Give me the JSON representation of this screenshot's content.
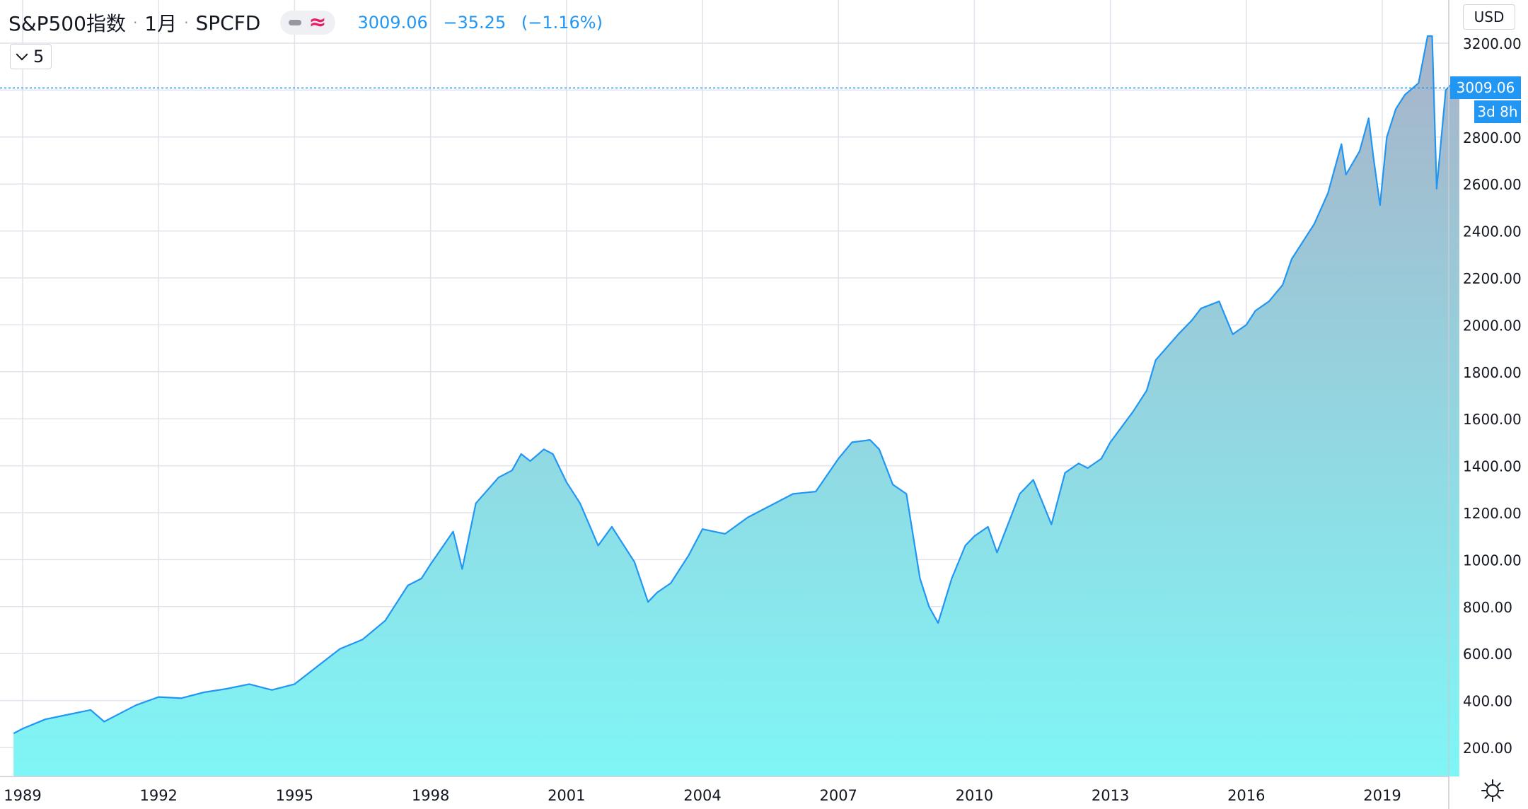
{
  "header": {
    "symbol": "S&P500指数",
    "interval": "1月",
    "source": "SPCFD",
    "last_price": "3009.06",
    "change": "−35.25",
    "change_pct": "(−1.16%)",
    "wave_icon": "≈"
  },
  "indicator_toggle": {
    "count": "5"
  },
  "currency_button": "USD",
  "last_price_tag": "3009.06",
  "countdown_tag": "3d 8h",
  "colors": {
    "line": "#2196f3",
    "fill_bottom": "#7ff6f6",
    "fill_top": "#a8b3c9",
    "grid": "#e0e3eb",
    "text": "#131722",
    "accent": "#2196f3"
  },
  "chart_data": {
    "type": "area",
    "title": "S&P500指数",
    "xlabel": "",
    "ylabel": "",
    "ylim": [
      120,
      3360
    ],
    "xlim": [
      1988.8,
      2021.2
    ],
    "grid": true,
    "x_ticks": [
      1989,
      1992,
      1995,
      1998,
      2001,
      2004,
      2007,
      2010,
      2013,
      2016,
      2019
    ],
    "x_tick_labels": [
      "1989",
      "1992",
      "1995",
      "1998",
      "2001",
      "2004",
      "2007",
      "2010",
      "2013",
      "2016",
      "2019"
    ],
    "y_ticks": [
      200,
      400,
      600,
      800,
      1000,
      1200,
      1400,
      1600,
      1800,
      2000,
      2200,
      2400,
      2600,
      2800,
      3000,
      3200
    ],
    "y_tick_labels": [
      "200.00",
      "400.00",
      "600.00",
      "800.00",
      "1000.00",
      "1200.00",
      "1400.00",
      "1600.00",
      "1800.00",
      "2000.00",
      "2200.00",
      "2400.00",
      "2600.00",
      "2800.00",
      "",
      "3200.00"
    ],
    "series": [
      {
        "x": [
          1988.8,
          1989.0,
          1989.5,
          1990.0,
          1990.5,
          1990.8,
          1991.0,
          1991.5,
          1992.0,
          1992.5,
          1993.0,
          1993.5,
          1994.0,
          1994.5,
          1995.0,
          1995.5,
          1996.0,
          1996.5,
          1997.0,
          1997.5,
          1997.8,
          1998.0,
          1998.5,
          1998.7,
          1999.0,
          1999.5,
          1999.8,
          2000.0,
          2000.2,
          2000.5,
          2000.7,
          2001.0,
          2001.3,
          2001.7,
          2002.0,
          2002.5,
          2002.8,
          2003.0,
          2003.3,
          2003.7,
          2004.0,
          2004.5,
          2005.0,
          2005.5,
          2006.0,
          2006.5,
          2007.0,
          2007.3,
          2007.7,
          2007.9,
          2008.2,
          2008.5,
          2008.8,
          2009.0,
          2009.2,
          2009.5,
          2009.8,
          2010.0,
          2010.3,
          2010.5,
          2010.8,
          2011.0,
          2011.3,
          2011.7,
          2012.0,
          2012.3,
          2012.5,
          2012.8,
          2013.0,
          2013.5,
          2013.8,
          2014.0,
          2014.5,
          2014.8,
          2015.0,
          2015.4,
          2015.7,
          2016.0,
          2016.2,
          2016.5,
          2016.8,
          2017.0,
          2017.5,
          2017.8,
          2018.1,
          2018.2,
          2018.5,
          2018.7,
          2018.8,
          2018.95,
          2019.1,
          2019.3,
          2019.5,
          2019.8,
          2020.0,
          2020.1,
          2020.2,
          2020.4,
          2020.6,
          2020.7
        ],
        "y": [
          260,
          280,
          320,
          340,
          360,
          310,
          330,
          380,
          415,
          410,
          435,
          450,
          470,
          445,
          470,
          545,
          620,
          660,
          740,
          890,
          920,
          980,
          1120,
          960,
          1240,
          1350,
          1380,
          1450,
          1420,
          1470,
          1450,
          1330,
          1240,
          1060,
          1140,
          990,
          820,
          860,
          900,
          1020,
          1130,
          1110,
          1180,
          1230,
          1280,
          1290,
          1430,
          1500,
          1510,
          1470,
          1320,
          1280,
          920,
          800,
          730,
          920,
          1060,
          1100,
          1140,
          1030,
          1180,
          1280,
          1340,
          1150,
          1370,
          1410,
          1390,
          1430,
          1500,
          1630,
          1720,
          1850,
          1960,
          2020,
          2070,
          2100,
          1960,
          2000,
          2060,
          2100,
          2170,
          2280,
          2430,
          2560,
          2770,
          2640,
          2740,
          2880,
          2720,
          2510,
          2800,
          2920,
          2980,
          3030,
          3230,
          3230,
          2580,
          3000,
          3040,
          3009.06
        ]
      }
    ]
  }
}
